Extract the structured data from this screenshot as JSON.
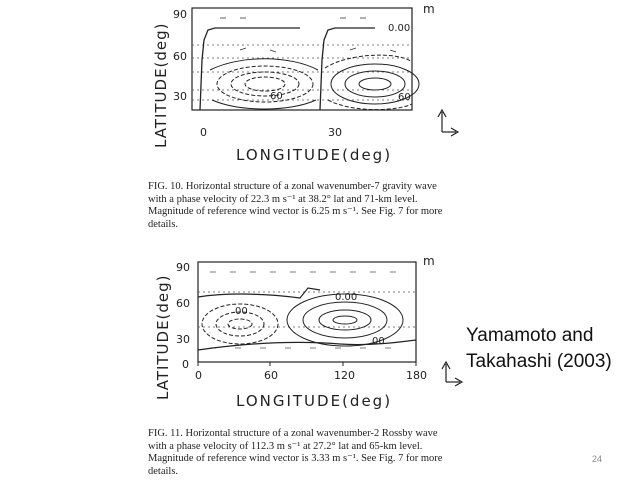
{
  "figure10": {
    "ylabel": "LATITUDE(deg)",
    "xlabel": "LONGITUDE(deg)",
    "yticks": [
      "90",
      "60",
      "30"
    ],
    "xticks": [
      "0",
      "30"
    ],
    "unit_label": "m",
    "contour_labels": [
      "0.00",
      "60",
      "60"
    ],
    "caption": "FIG. 10. Horizontal structure of a zonal wavenumber-7 gravity wave with a phase velocity of 22.3 m s⁻¹ at 38.2° lat and 71-km level. Magnitude of reference wind vector is 6.25 m s⁻¹. See Fig. 7 for more details."
  },
  "figure11": {
    "ylabel": "LATITUDE(deg)",
    "xlabel": "LONGITUDE(deg)",
    "yticks": [
      "90",
      "60",
      "30",
      "0"
    ],
    "xticks": [
      "0",
      "60",
      "120",
      "180"
    ],
    "unit_label": "m",
    "contour_labels": [
      "0.00",
      "00",
      "00"
    ],
    "caption": "FIG. 11. Horizontal structure of a zonal wavenumber-2 Rossby wave with a phase velocity of 112.3 m s⁻¹ at 27.2° lat and 65-km level. Magnitude of reference wind vector is 3.33 m s⁻¹. See Fig. 7 for more details."
  },
  "citation": {
    "line1": "Yamamoto and",
    "line2": "Takahashi (2003)"
  },
  "page_number": "24"
}
